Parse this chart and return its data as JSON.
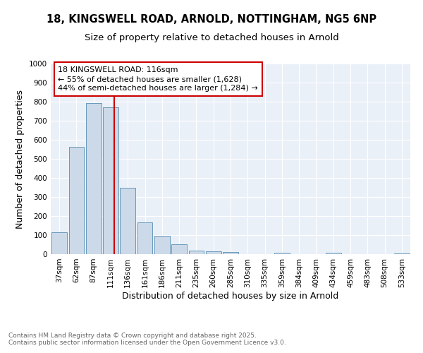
{
  "title1": "18, KINGSWELL ROAD, ARNOLD, NOTTINGHAM, NG5 6NP",
  "title2": "Size of property relative to detached houses in Arnold",
  "xlabel": "Distribution of detached houses by size in Arnold",
  "ylabel": "Number of detached properties",
  "categories": [
    "37sqm",
    "62sqm",
    "87sqm",
    "111sqm",
    "136sqm",
    "161sqm",
    "186sqm",
    "211sqm",
    "235sqm",
    "260sqm",
    "285sqm",
    "310sqm",
    "335sqm",
    "359sqm",
    "384sqm",
    "409sqm",
    "434sqm",
    "459sqm",
    "483sqm",
    "508sqm",
    "533sqm"
  ],
  "values": [
    113,
    563,
    793,
    770,
    350,
    165,
    97,
    52,
    20,
    13,
    10,
    0,
    0,
    7,
    0,
    0,
    8,
    0,
    0,
    0,
    5
  ],
  "bar_color": "#ccd9e8",
  "bar_edge_color": "#6699bb",
  "vline_color": "#cc0000",
  "annotation_box_color": "#cc0000",
  "annotation_box_text": "18 KINGSWELL ROAD: 116sqm\n← 55% of detached houses are smaller (1,628)\n44% of semi-detached houses are larger (1,284) →",
  "ylim": [
    0,
    1000
  ],
  "yticks": [
    0,
    100,
    200,
    300,
    400,
    500,
    600,
    700,
    800,
    900,
    1000
  ],
  "bg_color": "#eaf0f8",
  "footer_text": "Contains HM Land Registry data © Crown copyright and database right 2025.\nContains public sector information licensed under the Open Government Licence v3.0.",
  "title_fontsize": 10.5,
  "subtitle_fontsize": 9.5,
  "axis_label_fontsize": 9,
  "tick_fontsize": 7.5,
  "annotation_fontsize": 8,
  "footer_fontsize": 6.5
}
